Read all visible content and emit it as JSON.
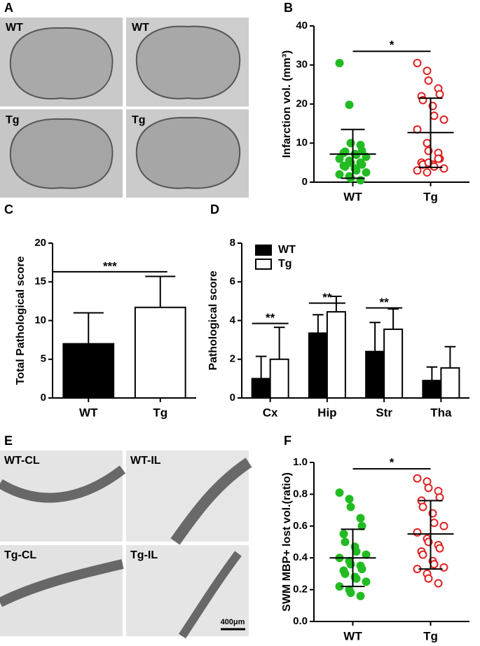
{
  "panels": {
    "A": {
      "label": "A",
      "images": [
        "WT",
        "WT",
        "Tg",
        "Tg"
      ]
    },
    "E": {
      "label": "E",
      "images": [
        "WT-CL",
        "WT-IL",
        "Tg-CL",
        "Tg-IL"
      ],
      "scale_bar": "400μm"
    }
  },
  "chart_data": [
    {
      "panel": "B",
      "type": "scatter",
      "y_label": "Infarction vol. (mm³)",
      "categories": [
        "WT",
        "Tg"
      ],
      "ylim": [
        0,
        40
      ],
      "yticks": [
        0,
        10,
        20,
        30,
        40
      ],
      "series": [
        {
          "color": "#22bb22",
          "filled": true,
          "values": [
            30.5,
            19.8,
            10,
            9.5,
            8,
            7.5,
            7.8,
            7.2,
            7,
            6.5,
            6,
            5.5,
            5,
            5,
            4.5,
            4.2,
            4,
            3.5,
            3,
            2.5,
            2,
            1.5,
            1,
            0.5
          ],
          "mean": 7.2,
          "error_high": 13.5,
          "error_low": 1
        },
        {
          "color": "#e02020",
          "filled": false,
          "values": [
            30.5,
            28.5,
            26,
            24,
            22.5,
            22,
            21,
            19.5,
            17,
            16,
            13.5,
            10,
            8,
            7.5,
            6,
            5,
            4.5,
            4.5,
            4,
            3.5,
            3,
            2.5,
            5,
            6
          ],
          "mean": 12.7,
          "error_high": 21.5,
          "error_low": 3.8
        }
      ],
      "annotations": [
        {
          "text": "*",
          "y": 33.5
        }
      ]
    },
    {
      "panel": "C",
      "type": "bar",
      "y_label": "Total Pathological score",
      "categories": [
        "WT",
        "Tg"
      ],
      "ylim": [
        0,
        20
      ],
      "yticks": [
        0,
        5,
        10,
        15,
        20
      ],
      "series": [
        {
          "colors": [
            "#000000",
            "#ffffff"
          ],
          "values": [
            7,
            11.7
          ],
          "error_high": [
            11,
            15.7
          ]
        }
      ],
      "annotations": [
        {
          "text": "***",
          "y": 16.3
        }
      ]
    },
    {
      "panel": "D",
      "type": "bar",
      "y_label": "Pathological score",
      "categories": [
        "Cx",
        "Hip",
        "Str",
        "Tha"
      ],
      "ylim": [
        0,
        8
      ],
      "yticks": [
        0,
        2,
        4,
        6,
        8
      ],
      "legend": "top-left",
      "series": [
        {
          "name": "WT",
          "color": "#000000",
          "values": [
            1.0,
            3.35,
            2.4,
            0.9
          ],
          "error_high": [
            2.15,
            4.3,
            3.9,
            1.6
          ]
        },
        {
          "name": "Tg",
          "color": "#ffffff",
          "values": [
            2.0,
            4.45,
            3.55,
            1.55
          ],
          "error_high": [
            3.65,
            5.25,
            4.6,
            2.65
          ]
        }
      ],
      "annotations": [
        {
          "text": "**",
          "y": 3.85,
          "category": 0
        },
        {
          "text": "**",
          "y": 4.9,
          "category": 1
        },
        {
          "text": "**",
          "y": 4.65,
          "category": 2
        }
      ]
    },
    {
      "panel": "F",
      "type": "scatter",
      "y_label": "SWM MBP+ lost vol.(ratio)",
      "categories": [
        "WT",
        "Tg"
      ],
      "ylim": [
        0,
        1
      ],
      "yticks": [
        {
          "value": 0,
          "label": "0.0"
        },
        0.2,
        0.4,
        0.6,
        0.8,
        {
          "value": 1,
          "label": "1.0"
        }
      ],
      "series": [
        {
          "color": "#22bb22",
          "filled": true,
          "values": [
            0.81,
            0.77,
            0.72,
            0.65,
            0.6,
            0.55,
            0.5,
            0.47,
            0.44,
            0.42,
            0.4,
            0.38,
            0.36,
            0.35,
            0.33,
            0.32,
            0.3,
            0.28,
            0.27,
            0.25,
            0.22,
            0.2,
            0.18,
            0.16
          ],
          "mean": 0.4,
          "error_high": 0.58,
          "error_low": 0.22
        },
        {
          "color": "#e02020",
          "filled": false,
          "values": [
            0.9,
            0.88,
            0.84,
            0.82,
            0.78,
            0.76,
            0.72,
            0.68,
            0.62,
            0.6,
            0.56,
            0.52,
            0.5,
            0.48,
            0.46,
            0.44,
            0.42,
            0.38,
            0.36,
            0.34,
            0.33,
            0.3,
            0.27,
            0.24
          ],
          "mean": 0.55,
          "error_high": 0.76,
          "error_low": 0.33
        }
      ],
      "annotations": [
        {
          "text": "*",
          "y": 0.96
        }
      ]
    }
  ]
}
